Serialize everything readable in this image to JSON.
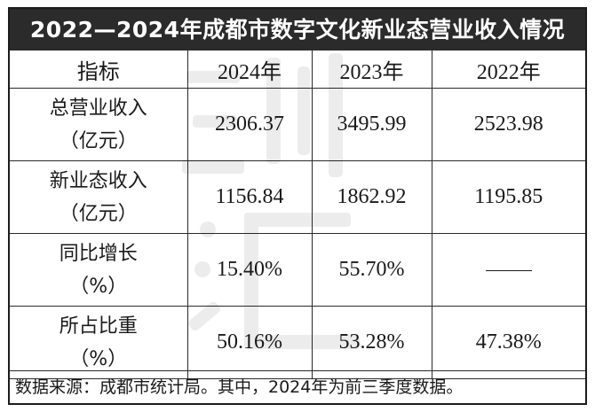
{
  "table": {
    "title": "2022—2024年成都市数字文化新业态营业收入情况",
    "header": {
      "label": "指标",
      "years": [
        "2024年",
        "2023年",
        "2022年"
      ]
    },
    "rows": [
      {
        "label_line1": "总营业收入",
        "label_line2": "（亿元）",
        "values": [
          "2306.37",
          "3495.99",
          "2523.98"
        ]
      },
      {
        "label_line1": "新业态收入",
        "label_line2": "（亿元）",
        "values": [
          "1156.84",
          "1862.92",
          "1195.85"
        ]
      },
      {
        "label_line1": "同比增长",
        "label_line2": "（%）",
        "values": [
          "15.40%",
          "55.70%",
          ""
        ]
      },
      {
        "label_line1": "所占比重",
        "label_line2": "（%）",
        "values": [
          "50.16%",
          "53.28%",
          "47.38%"
        ]
      }
    ],
    "footer": "数据来源：成都市统计局。其中，2024年为前三季度数据。"
  }
}
